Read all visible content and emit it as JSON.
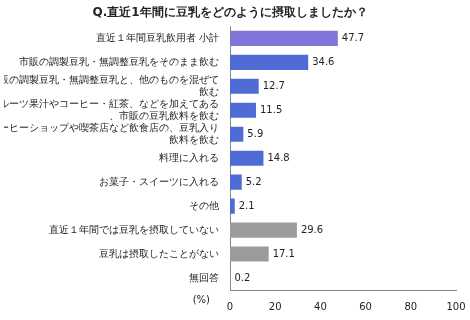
{
  "chart_data": {
    "type": "bar",
    "orientation": "horizontal",
    "title": "Q.直近1年間に豆乳をどのように摂取しましたか？",
    "xlabel": "(%)",
    "categories": [
      "直近１年間豆乳飲用者 小計",
      "市販の調製豆乳・無調整豆乳をそのまま飲む",
      "市販の調製豆乳・無調整豆乳と、他のものを混ぜて飲む",
      "フルーツ果汁やコーヒー・紅茶、などを加えてある、市販の豆乳飲料を飲む",
      "コーヒーショップや喫茶店など飲食店の、豆乳入り飲料を飲む",
      "料理に入れる",
      "お菓子・スイーツに入れる",
      "その他",
      "直近１年間では豆乳を摂取していない",
      "豆乳は摂取したことがない",
      "無回答"
    ],
    "values": [
      47.7,
      34.6,
      12.7,
      11.5,
      5.9,
      14.8,
      5.2,
      2.1,
      29.6,
      17.1,
      0.2
    ],
    "colors": [
      "#7f74d8",
      "#4e6bd6",
      "#4e6bd6",
      "#4e6bd6",
      "#4e6bd6",
      "#4e6bd6",
      "#4e6bd6",
      "#4e6bd6",
      "#9b9b9b",
      "#9b9b9b",
      "#9b9b9b"
    ],
    "xlim": [
      0,
      100
    ],
    "xticks": [
      0,
      20,
      40,
      60,
      80,
      100
    ],
    "grid": false,
    "data_labels": true
  }
}
